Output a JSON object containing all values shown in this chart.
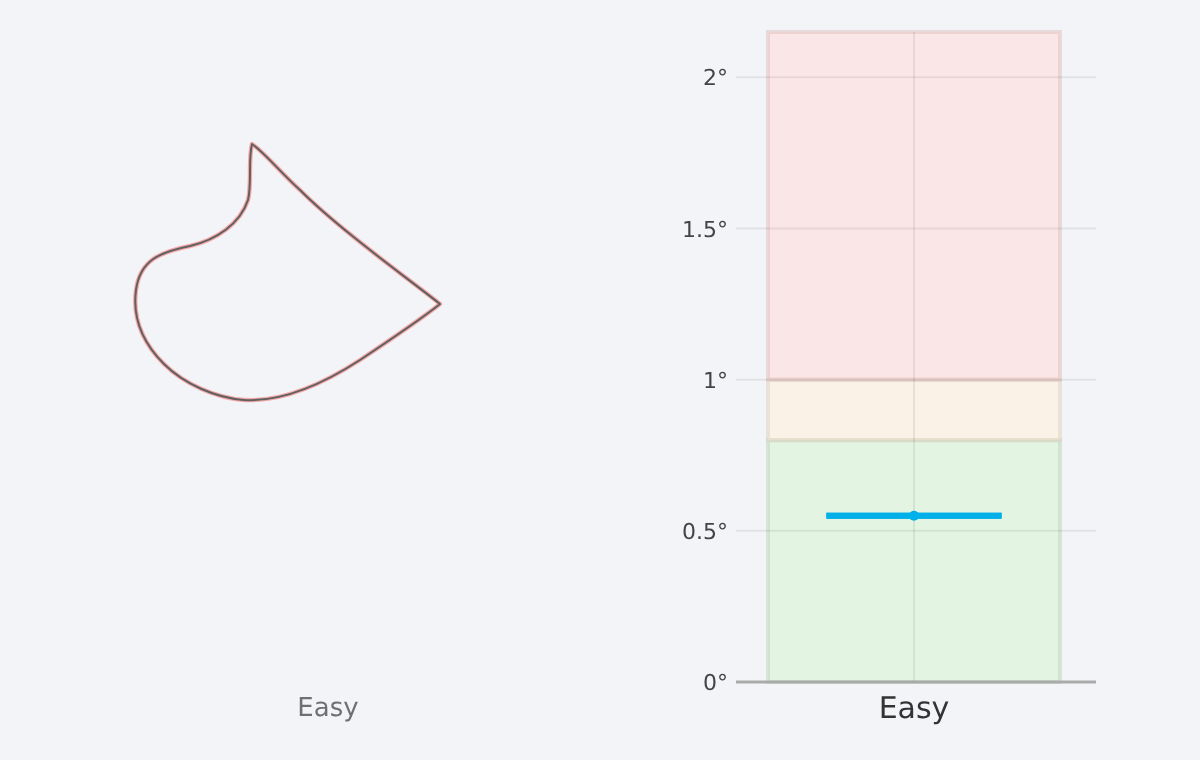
{
  "chart_data": [
    {
      "type": "other",
      "annotations": [
        "Easy"
      ]
    },
    {
      "type": "box",
      "categories": [
        "Easy"
      ],
      "series": [
        {
          "color": "#00b0e8",
          "boxes": [
            {
              "low": 0.55,
              "q1": 0.55,
              "median": 0.55,
              "q3": 0.55,
              "high": 0.55,
              "mean": 0.55
            }
          ]
        }
      ],
      "ylim": [
        0,
        2.15
      ],
      "yticks": [
        {
          "value": 0,
          "label": "0°"
        },
        {
          "value": 0.5,
          "label": "0.5°"
        },
        {
          "value": 1,
          "label": "1°"
        },
        {
          "value": 1.5,
          "label": "1.5°"
        },
        {
          "value": 2,
          "label": "2°"
        }
      ],
      "grid": true,
      "bands": [
        {
          "axis": "y",
          "from": 0,
          "to": 0.8,
          "color": "#d8f5d4"
        },
        {
          "axis": "y",
          "from": 0.8,
          "to": 1,
          "color": "#fff0dc"
        },
        {
          "axis": "y",
          "from": 1,
          "to": 2.15,
          "color": "#ffdcda"
        }
      ]
    }
  ]
}
